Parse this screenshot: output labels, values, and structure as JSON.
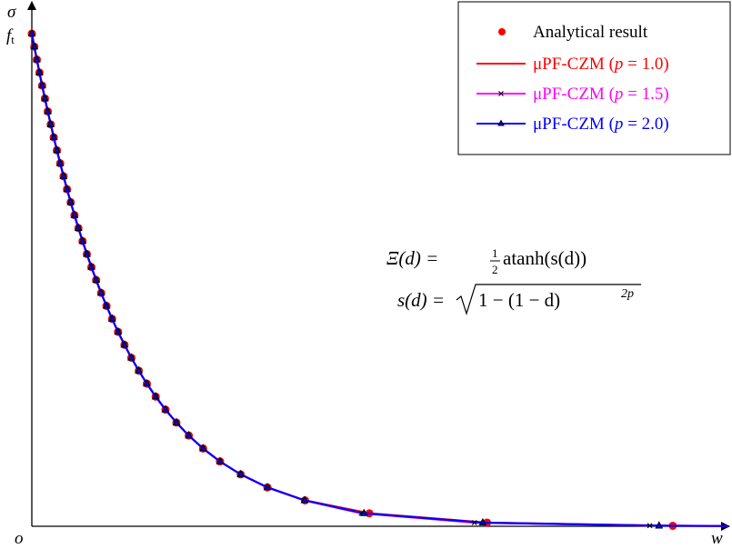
{
  "chart_data": {
    "type": "line",
    "title": "",
    "xlabel": "w",
    "ylabel": "σ",
    "origin_label": "o",
    "ytick_label": "f",
    "ytick_label_sub": "t",
    "xlim": [
      0,
      7.5
    ],
    "ylim": [
      0,
      1.06
    ],
    "grid": false,
    "legend_position": "top-right",
    "annotation": {
      "line1_lhs": "Ξ(d) = ",
      "line1_frac_num": "1",
      "line1_frac_den": "2",
      "line1_rhs": "atanh(s(d))",
      "line2_lhs": "s(d) = ",
      "line2_radicand": "1 − (1 − d)",
      "line2_exponent": "2p"
    },
    "analytical": {
      "name": "Analytical result",
      "color": "#ff0000",
      "w": [
        0,
        0.0267,
        0.0541,
        0.0822,
        0.1112,
        0.141,
        0.1719,
        0.2036,
        0.2364,
        0.2703,
        0.3054,
        0.3418,
        0.3795,
        0.4187,
        0.4595,
        0.5021,
        0.5466,
        0.5931,
        0.6419,
        0.6931,
        0.7472,
        0.8044,
        0.865,
        0.9295,
        0.9985,
        1.0726,
        1.1527,
        1.2397,
        1.335,
        1.4404,
        1.5581,
        1.6917,
        1.8458,
        2.0281,
        2.2513,
        2.539,
        2.9444,
        3.6376,
        4.906,
        6.908
      ],
      "sigma": [
        1,
        0.9737,
        0.9474,
        0.9211,
        0.8947,
        0.8684,
        0.8421,
        0.8158,
        0.7895,
        0.7632,
        0.7368,
        0.7105,
        0.6842,
        0.6579,
        0.6316,
        0.6053,
        0.5789,
        0.5526,
        0.5263,
        0.5,
        0.4737,
        0.4474,
        0.4211,
        0.3947,
        0.3684,
        0.3421,
        0.3158,
        0.2895,
        0.2632,
        0.2368,
        0.2105,
        0.1842,
        0.1579,
        0.1316,
        0.1053,
        0.0789,
        0.0526,
        0.0263,
        0.0074,
        0.001
      ]
    },
    "series": [
      {
        "name_prefix": "μPF-CZM (",
        "name_var": "p",
        "name_value": " = 1.0)",
        "color": "#ff0000",
        "marker": "none",
        "w": [
          0,
          0.0267,
          0.0541,
          0.0822,
          0.1112,
          0.141,
          0.1719,
          0.2036,
          0.2364,
          0.2703,
          0.3054,
          0.3418,
          0.3795,
          0.4187,
          0.4595,
          0.5021,
          0.5466,
          0.5931,
          0.6419,
          0.6931,
          0.7472,
          0.8044,
          0.865,
          0.9295,
          0.9985,
          1.0726,
          1.1527,
          1.2397,
          1.335,
          1.4404,
          1.5581,
          1.6917,
          1.8458,
          2.0281,
          2.2513,
          2.539,
          2.9444,
          3.6376,
          4.906,
          6.908,
          7.5
        ],
        "sigma": [
          1,
          0.9737,
          0.9474,
          0.9211,
          0.8947,
          0.8684,
          0.8421,
          0.8158,
          0.7895,
          0.7632,
          0.7368,
          0.7105,
          0.6842,
          0.6579,
          0.6316,
          0.6053,
          0.5789,
          0.5526,
          0.5263,
          0.5,
          0.4737,
          0.4474,
          0.4211,
          0.3947,
          0.3684,
          0.3421,
          0.3158,
          0.2895,
          0.2632,
          0.2368,
          0.2105,
          0.1842,
          0.1579,
          0.1316,
          0.1053,
          0.0789,
          0.0526,
          0.0263,
          0.0074,
          0.001,
          0.0006
        ]
      },
      {
        "name_prefix": "μPF-CZM (",
        "name_var": "p",
        "name_value": " = 1.5)",
        "color": "#ff00ff",
        "marker": "x",
        "w": [
          0,
          0.0267,
          0.0541,
          0.0822,
          0.1112,
          0.141,
          0.1719,
          0.2036,
          0.2364,
          0.2703,
          0.3054,
          0.3418,
          0.3795,
          0.4187,
          0.4595,
          0.5021,
          0.5466,
          0.5931,
          0.6419,
          0.6931,
          0.7472,
          0.8044,
          0.865,
          0.9295,
          0.9985,
          1.0726,
          1.1527,
          1.2397,
          1.335,
          1.4404,
          1.5581,
          1.6917,
          1.8458,
          2.0281,
          2.2513,
          2.539,
          2.9344,
          3.55,
          4.77,
          6.66,
          7.5
        ],
        "sigma": [
          1,
          0.9737,
          0.9474,
          0.9211,
          0.8947,
          0.8684,
          0.8421,
          0.8158,
          0.7895,
          0.7632,
          0.7368,
          0.7105,
          0.6842,
          0.6579,
          0.6316,
          0.6053,
          0.5789,
          0.5526,
          0.5263,
          0.5,
          0.4737,
          0.4474,
          0.4211,
          0.3947,
          0.3684,
          0.3421,
          0.3158,
          0.2895,
          0.2632,
          0.2368,
          0.2105,
          0.1842,
          0.1579,
          0.1316,
          0.1053,
          0.0789,
          0.0526,
          0.0263,
          0.0074,
          0.0012,
          0.0006
        ]
      },
      {
        "name_prefix": "μPF-CZM (",
        "name_var": "p",
        "name_value": " = 2.0)",
        "color": "#0000ff",
        "marker": "triangle",
        "w": [
          0,
          0.0267,
          0.0541,
          0.0822,
          0.1112,
          0.141,
          0.1719,
          0.2036,
          0.2364,
          0.2703,
          0.3054,
          0.3418,
          0.3795,
          0.4187,
          0.4595,
          0.5021,
          0.5466,
          0.5931,
          0.6419,
          0.6931,
          0.7472,
          0.8044,
          0.865,
          0.9295,
          0.9985,
          1.0726,
          1.1527,
          1.2397,
          1.335,
          1.4404,
          1.5581,
          1.6917,
          1.8458,
          2.0281,
          2.2513,
          2.539,
          2.9394,
          3.58,
          4.86,
          6.76,
          7.5
        ],
        "sigma": [
          1,
          0.9737,
          0.9474,
          0.9211,
          0.8947,
          0.8684,
          0.8421,
          0.8158,
          0.7895,
          0.7632,
          0.7368,
          0.7105,
          0.6842,
          0.6579,
          0.6316,
          0.6053,
          0.5789,
          0.5526,
          0.5263,
          0.5,
          0.4737,
          0.4474,
          0.4211,
          0.3947,
          0.3684,
          0.3421,
          0.3158,
          0.2895,
          0.2632,
          0.2368,
          0.2105,
          0.1842,
          0.1579,
          0.1316,
          0.1053,
          0.0789,
          0.0526,
          0.0263,
          0.0074,
          0.0011,
          0.0006
        ]
      }
    ]
  }
}
